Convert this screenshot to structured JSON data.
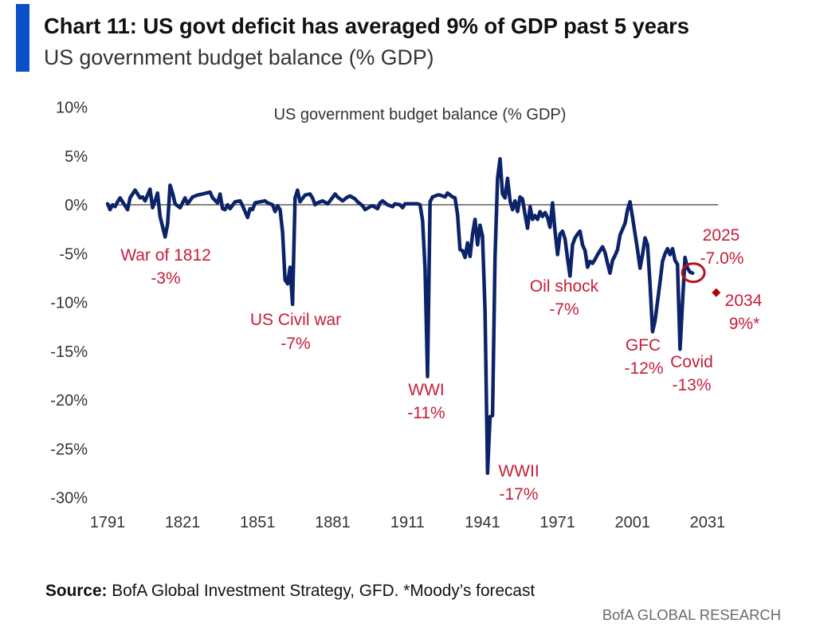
{
  "header": {
    "title": "Chart 11: US govt deficit has averaged 9% of GDP past 5 years",
    "subtitle": "US government budget balance (% GDP)"
  },
  "chart_data": {
    "type": "line",
    "title": "US government budget balance (% GDP)",
    "xlabel": "",
    "ylabel": "",
    "xlim": [
      1791,
      2034
    ],
    "ylim": [
      -30,
      10
    ],
    "grid": false,
    "legend": "none",
    "reference_line": {
      "value": 0
    },
    "x_ticks": [
      1791,
      1821,
      1851,
      1881,
      1911,
      1941,
      1971,
      2001,
      2031
    ],
    "x_tick_labels": [
      "1791",
      "1821",
      "1851",
      "1881",
      "1911",
      "1941",
      "1971",
      "2001",
      "2031"
    ],
    "y_ticks": [
      10,
      5,
      0,
      -5,
      -10,
      -15,
      -20,
      -25,
      -30
    ],
    "y_tick_labels": [
      "10%",
      "5%",
      "0%",
      "-5%",
      "-10%",
      "-15%",
      "-20%",
      "-25%",
      "-30%"
    ],
    "series": [
      {
        "name": "US government budget balance (% GDP)",
        "color": "#0c2369",
        "x": [
          1791,
          1792,
          1793,
          1794,
          1795,
          1796,
          1797,
          1799,
          1800,
          1802,
          1804,
          1805,
          1806,
          1808,
          1809,
          1810,
          1811,
          1812,
          1814,
          1815,
          1816,
          1817,
          1818,
          1820,
          1822,
          1823,
          1825,
          1827,
          1829,
          1832,
          1833,
          1835,
          1836,
          1837,
          1838,
          1839,
          1840,
          1842,
          1844,
          1845,
          1847,
          1848,
          1849,
          1850,
          1852,
          1854,
          1855,
          1857,
          1858,
          1859,
          1860,
          1861,
          1862,
          1863,
          1864,
          1865,
          1866,
          1867,
          1868,
          1870,
          1872,
          1873,
          1874,
          1875,
          1877,
          1879,
          1880,
          1882,
          1883,
          1885,
          1887,
          1888,
          1890,
          1891,
          1893,
          1894,
          1896,
          1897,
          1899,
          1900,
          1901,
          1903,
          1905,
          1906,
          1908,
          1909,
          1910,
          1913,
          1915,
          1916,
          1917,
          1918,
          1919,
          1920,
          1921,
          1923,
          1924,
          1926,
          1927,
          1928,
          1929,
          1930,
          1931,
          1932,
          1933,
          1934,
          1935,
          1936,
          1937,
          1938,
          1939,
          1940,
          1941,
          1942,
          1943,
          1944,
          1945,
          1946,
          1947,
          1948,
          1949,
          1950,
          1951,
          1952,
          1953,
          1954,
          1955,
          1956,
          1957,
          1958,
          1959,
          1960,
          1961,
          1962,
          1963,
          1964,
          1965,
          1966,
          1967,
          1968,
          1969,
          1970,
          1971,
          1972,
          1973,
          1974,
          1975,
          1976,
          1977,
          1978,
          1979,
          1980,
          1981,
          1982,
          1983,
          1984,
          1985,
          1986,
          1987,
          1988,
          1989,
          1990,
          1991,
          1992,
          1993,
          1994,
          1995,
          1996,
          1998,
          1999,
          2000,
          2001,
          2003,
          2004,
          2005,
          2006,
          2007,
          2008,
          2009,
          2010,
          2012,
          2013,
          2014,
          2015,
          2016,
          2017,
          2018,
          2019,
          2020,
          2021,
          2022,
          2023,
          2024,
          2025
        ],
        "y": [
          0.1,
          -0.5,
          0.0,
          -0.2,
          0.3,
          0.7,
          0.3,
          -0.5,
          0.7,
          1.5,
          0.7,
          0.8,
          0.4,
          1.6,
          -0.3,
          0.4,
          1.2,
          -1.2,
          -3.3,
          -2.0,
          2.0,
          1.2,
          0.1,
          -0.3,
          0.7,
          0.1,
          0.8,
          1.0,
          1.1,
          1.3,
          0.7,
          0.2,
          1.1,
          -0.4,
          -0.5,
          0.0,
          -0.4,
          0.3,
          0.4,
          -0.1,
          -1.3,
          -0.4,
          -0.5,
          0.2,
          0.3,
          0.4,
          0.2,
          0.0,
          -0.7,
          -0.1,
          -0.5,
          -2.8,
          -7.7,
          -8.1,
          -6.4,
          -10.2,
          0.7,
          1.5,
          0.3,
          1.0,
          1.1,
          0.7,
          0.0,
          0.2,
          0.4,
          0.1,
          0.4,
          1.1,
          0.8,
          0.4,
          0.8,
          0.9,
          0.6,
          0.3,
          -0.1,
          -0.5,
          -0.2,
          -0.1,
          -0.4,
          0.2,
          0.4,
          0.0,
          -0.2,
          0.1,
          0.0,
          -0.3,
          0.1,
          0.1,
          0.1,
          0.0,
          -1.6,
          -6.5,
          -17.6,
          0.3,
          0.8,
          1.0,
          1.0,
          0.8,
          1.2,
          1.0,
          0.8,
          0.7,
          -1.0,
          -4.6,
          -4.7,
          -5.4,
          -3.9,
          -5.3,
          -3.0,
          -1.5,
          -4.1,
          -2.1,
          -3.2,
          -10.9,
          -27.5,
          -21.7,
          -21.6,
          -5.4,
          2.7,
          4.7,
          1.1,
          0.7,
          2.7,
          0.4,
          -0.5,
          0.4,
          -0.7,
          0.8,
          0.6,
          -1.0,
          -2.4,
          -0.2,
          -1.5,
          -1.1,
          -1.5,
          -0.7,
          -1.2,
          -0.8,
          -1.3,
          -2.3,
          0.2,
          -2.7,
          -5.1,
          -3.0,
          -2.7,
          -3.5,
          -5.5,
          -7.3,
          -4.1,
          -3.4,
          -3.0,
          -2.7,
          -4.1,
          -4.7,
          -6.4,
          -5.8,
          -6.0,
          -5.6,
          -5.1,
          -4.7,
          -4.3,
          -4.9,
          -6.0,
          -7.0,
          -5.7,
          -5.2,
          -4.6,
          -3.1,
          -1.9,
          -0.5,
          0.3,
          -1.3,
          -4.6,
          -6.5,
          -5.1,
          -3.4,
          -4.1,
          -8.1,
          -13.0,
          -11.9,
          -7.9,
          -5.8,
          -5.0,
          -4.5,
          -5.1,
          -4.5,
          -5.7,
          -6.1,
          -14.8,
          -10.0,
          -5.4,
          -6.5,
          -6.9,
          -7.0
        ]
      }
    ],
    "highlight": {
      "year": 2025,
      "value": -7.0,
      "label": "2025",
      "value_label": "-7.0%",
      "color": "#b5121b"
    },
    "forecast": {
      "year": 2034,
      "value": -9.0,
      "label": "2034",
      "value_label": "9%*",
      "color": "#b00000"
    },
    "annotations": [
      {
        "label": "War of 1812",
        "value_label": "-3%"
      },
      {
        "label": "US Civil war",
        "value_label": "-7%"
      },
      {
        "label": "WWI",
        "value_label": "-11%"
      },
      {
        "label": "WWII",
        "value_label": "-17%"
      },
      {
        "label": "Oil shock",
        "value_label": "-7%"
      },
      {
        "label": "GFC",
        "value_label": "-12%"
      },
      {
        "label": "Covid",
        "value_label": "-13%"
      }
    ]
  },
  "footer": {
    "source_label": "Source:",
    "source_text": " BofA Global Investment Strategy, GFD. *Moody’s forecast",
    "brand": "BofA GLOBAL RESEARCH"
  },
  "colors": {
    "accent_bar": "#0b50c8",
    "annotation": "#c41e3a",
    "line": "#0c2369",
    "zero_line": "#5f5f5f"
  }
}
